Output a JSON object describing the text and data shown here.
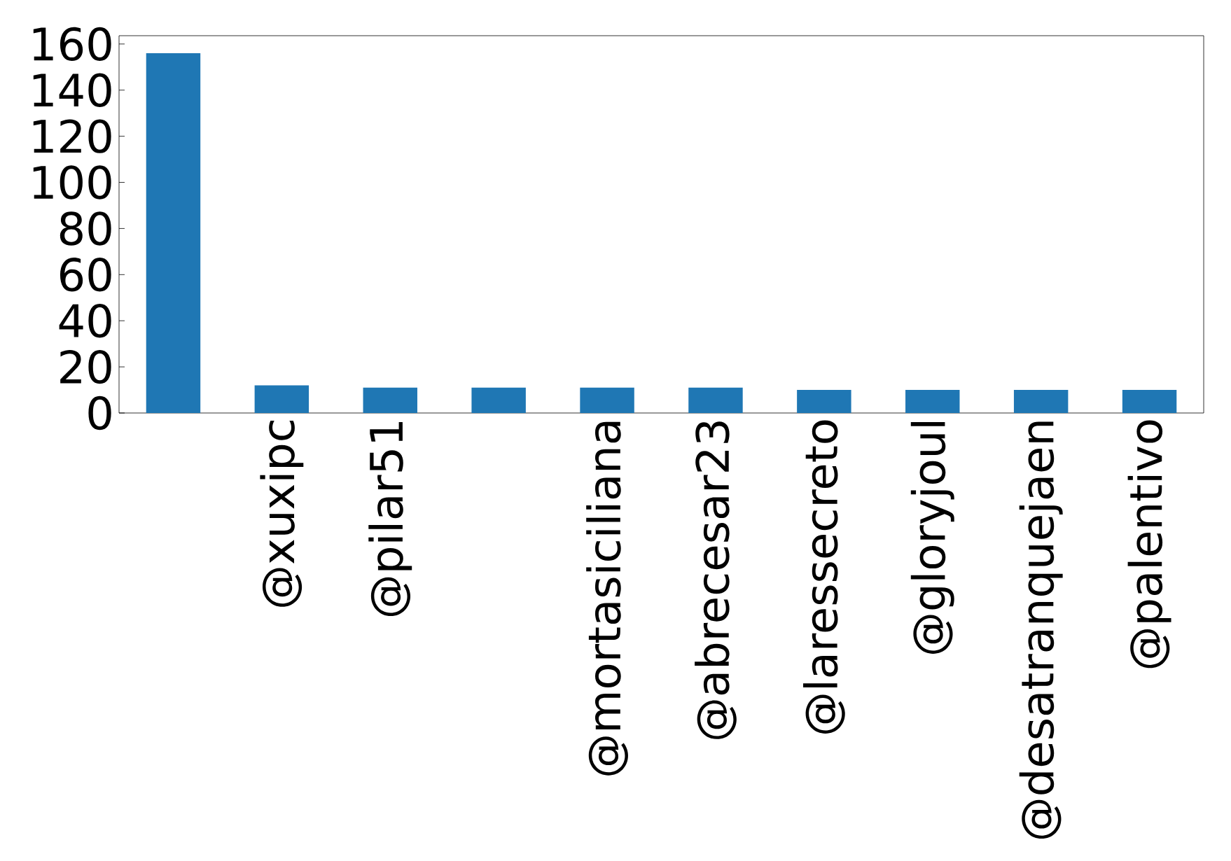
{
  "chart_data": {
    "type": "bar",
    "categories": [
      null,
      "@xuxipc",
      "@pilar51",
      null,
      "@mortasiciliana",
      "@abrecesar23",
      "@laressecreto",
      "@gloryjoul",
      "@desatranquejaen",
      "@palentivo"
    ],
    "values": [
      156,
      12,
      11,
      11,
      11,
      11,
      10,
      10,
      10,
      10
    ],
    "color": "#1f77b4",
    "ylim": [
      0,
      163.6
    ],
    "yticks": [
      0,
      20,
      40,
      60,
      80,
      100,
      120,
      140,
      160
    ]
  }
}
